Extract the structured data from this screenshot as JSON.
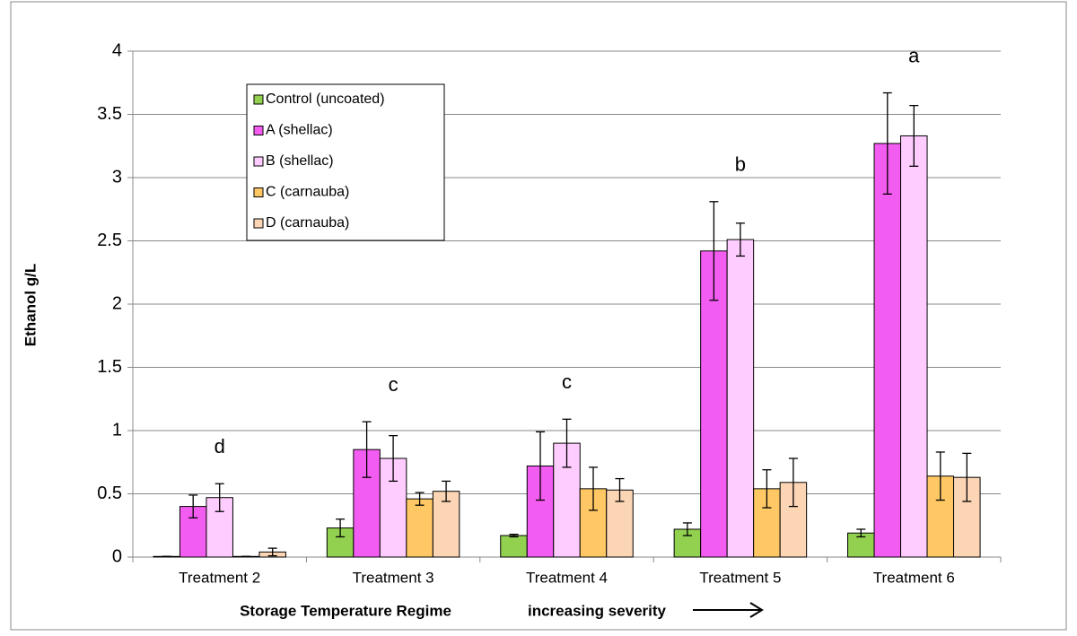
{
  "chart_data": {
    "type": "bar",
    "y_label": "Ethanol g/L",
    "x_label": "Storage Temperature Regime",
    "x_note": "increasing severity",
    "categories": [
      "Treatment 2",
      "Treatment 3",
      "Treatment 4",
      "Treatment 5",
      "Treatment 6"
    ],
    "series": [
      {
        "name": "Control (uncoated)",
        "color": "#92d050",
        "values": [
          0.005,
          0.23,
          0.17,
          0.22,
          0.19
        ],
        "errors": [
          0,
          0.07,
          0.01,
          0.05,
          0.03
        ]
      },
      {
        "name": "A (shellac)",
        "color": "#f35cf0",
        "values": [
          0.4,
          0.85,
          0.72,
          2.42,
          3.27
        ],
        "errors": [
          0.09,
          0.22,
          0.27,
          0.39,
          0.4
        ]
      },
      {
        "name": "B (shellac)",
        "color": "#ffccff",
        "values": [
          0.47,
          0.78,
          0.9,
          2.51,
          3.33
        ],
        "errors": [
          0.11,
          0.18,
          0.19,
          0.13,
          0.24
        ]
      },
      {
        "name": "C (carnauba)",
        "color": "#ffc864",
        "values": [
          0.005,
          0.46,
          0.54,
          0.54,
          0.64
        ],
        "errors": [
          0,
          0.05,
          0.17,
          0.15,
          0.19
        ]
      },
      {
        "name": "D (carnauba)",
        "color": "#fcd5b5",
        "values": [
          0.04,
          0.52,
          0.53,
          0.59,
          0.63
        ],
        "errors": [
          0.03,
          0.08,
          0.09,
          0.19,
          0.19
        ]
      }
    ],
    "annotations": [
      "d",
      "c",
      "c",
      "b",
      "a"
    ],
    "ylim": [
      0,
      4
    ],
    "yticks": [
      0,
      0.5,
      1,
      1.5,
      2,
      2.5,
      3,
      3.5,
      4
    ],
    "grid": true
  }
}
